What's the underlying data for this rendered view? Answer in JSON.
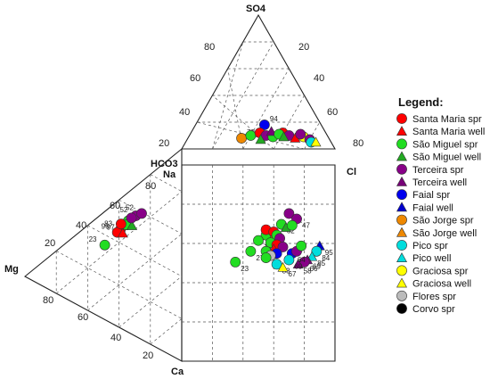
{
  "chart_data": {
    "type": "scatter",
    "subtype": "piper-diagram",
    "title": "",
    "axis_labels": {
      "so4": "SO4",
      "cl": "Cl",
      "hco3": "HCO3",
      "na": "Na",
      "mg": "Mg",
      "ca": "Ca"
    },
    "ticks": {
      "so4": [
        "80",
        "60",
        "40",
        "20"
      ],
      "so4_left": [
        "20",
        "40",
        "60",
        "80"
      ],
      "right": [
        "80"
      ],
      "left_side": [
        "80",
        "60",
        "40",
        "20"
      ],
      "mg_side": [
        "80",
        "60",
        "40",
        "20"
      ],
      "ca_side": [
        "40",
        "20"
      ]
    },
    "legend": {
      "title": "Legend:",
      "placement": "right",
      "entries": [
        {
          "label": "Santa Maria spr",
          "color": "#ff0000",
          "shape": "circle"
        },
        {
          "label": "Santa Maria well",
          "color": "#ff0000",
          "shape": "triangle"
        },
        {
          "label": "São Miguel spr",
          "color": "#22dd22",
          "shape": "circle"
        },
        {
          "label": "São Miguel well",
          "color": "#22aa22",
          "shape": "triangle"
        },
        {
          "label": "Terceira spr",
          "color": "#880088",
          "shape": "circle"
        },
        {
          "label": "Terceira well",
          "color": "#770077",
          "shape": "triangle"
        },
        {
          "label": "Faial spr",
          "color": "#0000ee",
          "shape": "circle"
        },
        {
          "label": "Faial well",
          "color": "#0000cc",
          "shape": "triangle"
        },
        {
          "label": "São Jorge spr",
          "color": "#ee8800",
          "shape": "circle"
        },
        {
          "label": "São Jorge well",
          "color": "#ee8800",
          "shape": "triangle"
        },
        {
          "label": "Pico spr",
          "color": "#00dddd",
          "shape": "circle"
        },
        {
          "label": "Pico well",
          "color": "#00dddd",
          "shape": "triangle"
        },
        {
          "label": "Graciosa spr",
          "color": "#ffff00",
          "shape": "circle"
        },
        {
          "label": "Graciosa well",
          "color": "#ffff00",
          "shape": "triangle"
        },
        {
          "label": "Flores spr",
          "color": "#bbbbbb",
          "shape": "circle"
        },
        {
          "label": "Corvo spr",
          "color": "#000000",
          "shape": "circle"
        }
      ]
    },
    "anion_points": [
      {
        "cl": 45,
        "so4": 18,
        "group": 6,
        "label": "94"
      },
      {
        "cl": 35,
        "so4": 8,
        "group": 8,
        "label": "70"
      },
      {
        "cl": 40,
        "so4": 10,
        "group": 2
      },
      {
        "cl": 45,
        "so4": 12,
        "group": 0
      },
      {
        "cl": 50,
        "so4": 10,
        "group": 4
      },
      {
        "cl": 55,
        "so4": 9,
        "group": 2
      },
      {
        "cl": 60,
        "so4": 12,
        "group": 0
      },
      {
        "cl": 65,
        "so4": 10,
        "group": 4
      },
      {
        "cl": 70,
        "so4": 8,
        "group": 1
      },
      {
        "cl": 75,
        "so4": 9,
        "group": 12
      },
      {
        "cl": 80,
        "so4": 7,
        "group": 4
      },
      {
        "cl": 82,
        "so4": 5,
        "group": 10
      },
      {
        "cl": 85,
        "so4": 5,
        "group": 13
      },
      {
        "cl": 52,
        "so4": 13,
        "group": 5
      },
      {
        "cl": 58,
        "so4": 11,
        "group": 2
      },
      {
        "cl": 62,
        "so4": 9,
        "group": 3
      },
      {
        "cl": 48,
        "so4": 7,
        "group": 3
      },
      {
        "cl": 72,
        "so4": 11,
        "group": 4
      }
    ],
    "cation_points": [
      {
        "na": 60,
        "mg": 30,
        "group": 4,
        "label": "52"
      },
      {
        "na": 62,
        "mg": 26,
        "group": 4,
        "label": "52"
      },
      {
        "na": 55,
        "mg": 35,
        "group": 2
      },
      {
        "na": 45,
        "mg": 40,
        "group": 0,
        "label": "83"
      },
      {
        "na": 42,
        "mg": 42,
        "group": 0,
        "label": "96"
      },
      {
        "na": 40,
        "mg": 38,
        "group": 1,
        "label": "97"
      },
      {
        "na": 28,
        "mg": 50,
        "group": 2,
        "label": "23"
      },
      {
        "na": 50,
        "mg": 36,
        "group": 2
      },
      {
        "na": 48,
        "mg": 32,
        "group": 3
      },
      {
        "na": 52,
        "mg": 40,
        "group": 0
      },
      {
        "na": 58,
        "mg": 33,
        "group": 4
      }
    ],
    "diamond_points": [
      {
        "hco3": 55,
        "na": 70,
        "group": 4,
        "label": "52"
      },
      {
        "hco3": 30,
        "na": 60,
        "group": 8,
        "label": "70"
      },
      {
        "hco3": 50,
        "na": 75,
        "group": 4,
        "label": "47"
      },
      {
        "hco3": 45,
        "na": 65,
        "group": 2,
        "label": "62"
      },
      {
        "hco3": 35,
        "na": 55,
        "group": 2,
        "label": "40"
      },
      {
        "hco3": 30,
        "na": 50,
        "group": 2,
        "label": "14"
      },
      {
        "hco3": 20,
        "na": 45,
        "group": 2,
        "label": "27"
      },
      {
        "hco3": 10,
        "na": 35,
        "group": 2,
        "label": "23"
      },
      {
        "hco3": 25,
        "na": 90,
        "group": 7,
        "label": "95"
      },
      {
        "hco3": 20,
        "na": 88,
        "group": 10,
        "label": "84"
      },
      {
        "hco3": 15,
        "na": 85,
        "group": 11,
        "label": "85"
      },
      {
        "hco3": 12,
        "na": 82,
        "group": 5,
        "label": "69"
      },
      {
        "hco3": 10,
        "na": 80,
        "group": 4,
        "label": "66"
      },
      {
        "hco3": 8,
        "na": 76,
        "group": 5,
        "label": "58"
      },
      {
        "hco3": 18,
        "na": 72,
        "group": 6,
        "label": "64"
      },
      {
        "hco3": 12,
        "na": 70,
        "group": 10,
        "label": "69"
      },
      {
        "hco3": 8,
        "na": 62,
        "group": 10,
        "label": "83"
      },
      {
        "hco3": 5,
        "na": 66,
        "group": 13,
        "label": "67"
      },
      {
        "hco3": 40,
        "na": 55,
        "group": 0
      },
      {
        "hco3": 38,
        "na": 60,
        "group": 0
      },
      {
        "hco3": 35,
        "na": 62,
        "group": 2
      },
      {
        "hco3": 32,
        "na": 64,
        "group": 4
      },
      {
        "hco3": 28,
        "na": 58,
        "group": 2
      },
      {
        "hco3": 26,
        "na": 62,
        "group": 0
      },
      {
        "hco3": 24,
        "na": 66,
        "group": 4
      },
      {
        "hco3": 22,
        "na": 60,
        "group": 1
      },
      {
        "hco3": 20,
        "na": 55,
        "group": 2
      },
      {
        "hco3": 18,
        "na": 62,
        "group": 6
      },
      {
        "hco3": 16,
        "na": 58,
        "group": 14
      },
      {
        "hco3": 14,
        "na": 55,
        "group": 2
      },
      {
        "hco3": 42,
        "na": 68,
        "group": 3
      },
      {
        "hco3": 44,
        "na": 72,
        "group": 2
      },
      {
        "hco3": 20,
        "na": 75,
        "group": 4
      },
      {
        "hco3": 25,
        "na": 78,
        "group": 2
      }
    ],
    "groups": [
      "Santa Maria spr",
      "Santa Maria well",
      "São Miguel spr",
      "São Miguel well",
      "Terceira spr",
      "Terceira well",
      "Faial spr",
      "Faial well",
      "São Jorge spr",
      "São Jorge well",
      "Pico spr",
      "Pico well",
      "Graciosa spr",
      "Graciosa well",
      "Flores spr",
      "Corvo spr"
    ]
  }
}
